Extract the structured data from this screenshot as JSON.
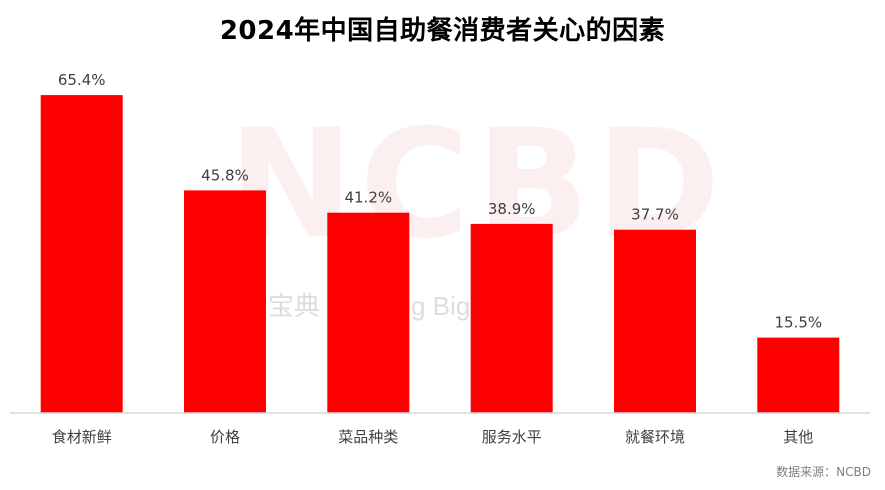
{
  "chart_data": {
    "type": "bar",
    "title": "2024年中国自助餐消费者关心的因素",
    "categories": [
      "食材新鲜",
      "价格",
      "菜品种类",
      "服务水平",
      "就餐环境",
      "其他"
    ],
    "values": [
      65.4,
      45.8,
      41.2,
      38.9,
      37.7,
      15.5
    ],
    "value_labels": [
      "65.4%",
      "45.8%",
      "41.2%",
      "38.9%",
      "37.7%",
      "15.5%"
    ],
    "ylim": [
      0,
      68.5
    ],
    "bar_color": "#ff0000",
    "grid": false,
    "legend": "none"
  },
  "watermark": {
    "logo": "NCBD",
    "subtitle": "宝典 Catering Big Data"
  },
  "source": "数据来源：NCBD"
}
